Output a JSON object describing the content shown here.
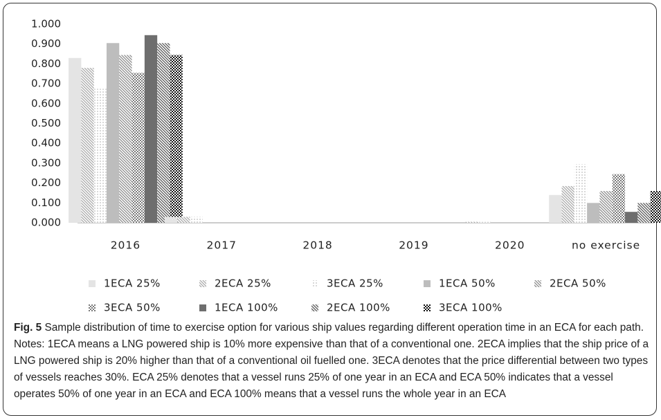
{
  "chart_data": {
    "type": "bar",
    "caption_label": "Fig. 5",
    "caption": "Sample distribution of time to exercise option for various ship values regarding different operation time in an ECA for each path. Notes: 1ECA means a LNG powered ship is 10% more expensive than that of a conventional one. 2ECA implies that the ship price of a LNG powered ship is 20% higher than that of a conventional oil fuelled one. 3ECA denotes that the price differential between two types of vessels reaches 30%. ECA 25% denotes that a vessel runs 25% of one year in an ECA and ECA 50% indicates that a vessel operates 50% of one year in an ECA and ECA 100% means that a vessel runs the whole year in an ECA",
    "categories": [
      "2016",
      "2017",
      "2018",
      "2019",
      "2020",
      "no exercise"
    ],
    "series": [
      {
        "name": "1ECA 25%",
        "color": "#e4e4e4",
        "pattern": "solid",
        "values": [
          0.83,
          0.03,
          0,
          0,
          0,
          0.14
        ]
      },
      {
        "name": "2ECA 25%",
        "color": "#a8a8a8",
        "pattern": "diagonal",
        "values": [
          0.78,
          0.03,
          0,
          0,
          0.005,
          0.185
        ]
      },
      {
        "name": "3ECA 25%",
        "color": "#d8d8d8",
        "pattern": "dots",
        "values": [
          0.675,
          0.03,
          0,
          0,
          0.005,
          0.295
        ]
      },
      {
        "name": "1ECA 50%",
        "color": "#bdbdbd",
        "pattern": "solid",
        "values": [
          0.905,
          0,
          0,
          0,
          0,
          0.1
        ]
      },
      {
        "name": "2ECA 50%",
        "color": "#8a8a8a",
        "pattern": "diagonal",
        "values": [
          0.845,
          0,
          0,
          0,
          0,
          0.16
        ]
      },
      {
        "name": "3ECA 50%",
        "color": "#7a7a7a",
        "pattern": "checker",
        "values": [
          0.755,
          0,
          0,
          0,
          0,
          0.245
        ]
      },
      {
        "name": "1ECA 100%",
        "color": "#6e6e6e",
        "pattern": "solid",
        "values": [
          0.945,
          0,
          0,
          0,
          0,
          0.055
        ]
      },
      {
        "name": "2ECA 100%",
        "color": "#555555",
        "pattern": "diagonal",
        "values": [
          0.905,
          0,
          0,
          0,
          0,
          0.1
        ]
      },
      {
        "name": "3ECA 100%",
        "color": "#111111",
        "pattern": "checker",
        "values": [
          0.845,
          0,
          0,
          0,
          0,
          0.16
        ]
      }
    ],
    "ylim": [
      0,
      1
    ],
    "yticks": [
      {
        "value": 0,
        "label": "0.000"
      },
      {
        "value": 0.1,
        "label": "0.100"
      },
      {
        "value": 0.2,
        "label": "0.200"
      },
      {
        "value": 0.3,
        "label": "0.300"
      },
      {
        "value": 0.4,
        "label": "0.400"
      },
      {
        "value": 0.5,
        "label": "0.500"
      },
      {
        "value": 0.6,
        "label": "0.600"
      },
      {
        "value": 0.7,
        "label": "0.700"
      },
      {
        "value": 0.8,
        "label": "0.800"
      },
      {
        "value": 0.9,
        "label": "0.900"
      },
      {
        "value": 1,
        "label": "1.000"
      }
    ],
    "grid": false,
    "legend": "bottom"
  }
}
